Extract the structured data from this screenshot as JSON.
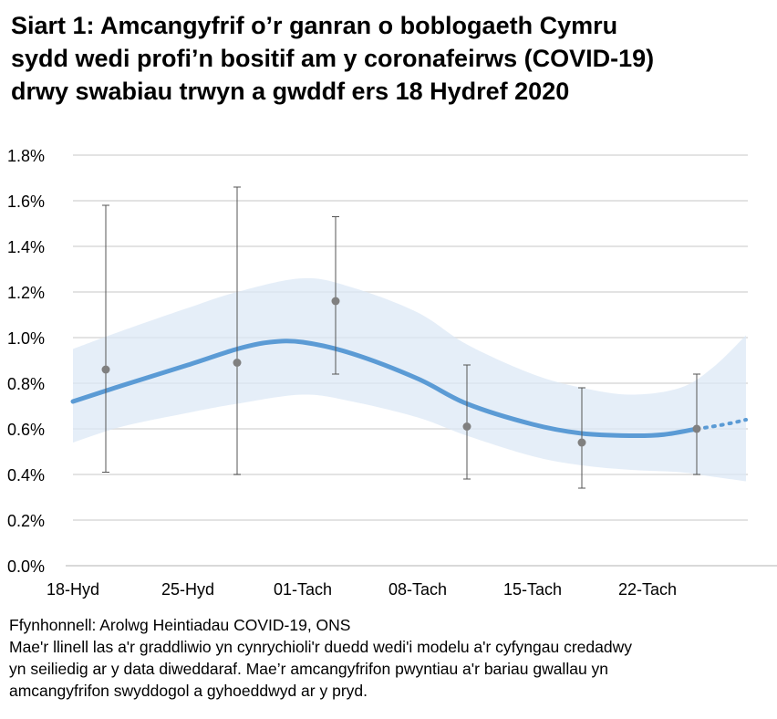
{
  "title_lines": [
    "Siart 1: Amcangyfrif o’r ganran o boblogaeth Cymru",
    "sydd wedi profi’n bositif am y coronafeirws (COVID-19)",
    "drwy swabiau trwyn a gwddf ers 18 Hydref 2020"
  ],
  "notes": {
    "source": "Ffynhonnell: Arolwg Heintiadau COVID-19, ONS",
    "lines": [
      "Mae'r llinell las a'r graddliwio yn cynrychioli'r duedd wedi'i modelu a'r cyfyngau credadwy",
      "yn seiliedig ar y data diweddaraf. Mae’r amcangyfrifon pwyntiau a'r bariau gwallau yn",
      "amcangyfrifon swyddogol a gyhoeddwyd ar y pryd."
    ]
  },
  "chart_data": {
    "type": "line",
    "title": "Siart 1: Amcangyfrif o’r ganran o boblogaeth Cymru sydd wedi profi’n bositif am y coronafeirws (COVID-19) drwy swabiau trwyn a gwddf ers 18 Hydref 2020",
    "xlim": [
      "2020-10-18",
      "2020-11-28"
    ],
    "ylim": [
      0,
      1.8
    ],
    "grid": true,
    "y_ticks": [
      "0.0%",
      "0.2%",
      "0.4%",
      "0.6%",
      "0.8%",
      "1.0%",
      "1.2%",
      "1.4%",
      "1.6%",
      "1.8%"
    ],
    "x_ticks": [
      {
        "date": "2020-10-18",
        "label": "18-Hyd"
      },
      {
        "date": "2020-10-25",
        "label": "25-Hyd"
      },
      {
        "date": "2020-11-01",
        "label": "01-Tach"
      },
      {
        "date": "2020-11-08",
        "label": "08-Tach"
      },
      {
        "date": "2020-11-15",
        "label": "15-Tach"
      },
      {
        "date": "2020-11-22",
        "label": "22-Tach"
      }
    ],
    "model_trend": {
      "color": "#5b9bd5",
      "x": [
        "2020-10-18",
        "2020-10-21",
        "2020-10-25",
        "2020-10-28",
        "2020-10-30",
        "2020-11-01",
        "2020-11-04",
        "2020-11-08",
        "2020-11-11",
        "2020-11-15",
        "2020-11-18",
        "2020-11-21",
        "2020-11-23",
        "2020-11-25"
      ],
      "y": [
        0.72,
        0.79,
        0.88,
        0.95,
        0.98,
        0.98,
        0.93,
        0.82,
        0.71,
        0.62,
        0.58,
        0.57,
        0.575,
        0.6
      ]
    },
    "model_projection": {
      "x": [
        "2020-11-25",
        "2020-11-28"
      ],
      "y": [
        0.6,
        0.64
      ]
    },
    "credible_interval": {
      "color": "#dce8f5",
      "x": [
        "2020-10-18",
        "2020-10-21",
        "2020-10-25",
        "2020-10-28",
        "2020-11-01",
        "2020-11-04",
        "2020-11-08",
        "2020-11-11",
        "2020-11-15",
        "2020-11-18",
        "2020-11-21",
        "2020-11-24",
        "2020-11-26",
        "2020-11-28"
      ],
      "upper": [
        0.95,
        1.03,
        1.13,
        1.2,
        1.26,
        1.22,
        1.11,
        0.97,
        0.84,
        0.78,
        0.75,
        0.78,
        0.87,
        1.01
      ],
      "lower": [
        0.54,
        0.61,
        0.67,
        0.71,
        0.75,
        0.72,
        0.65,
        0.57,
        0.48,
        0.44,
        0.42,
        0.41,
        0.39,
        0.37
      ]
    },
    "official_estimates": {
      "color": "#808080",
      "points": [
        {
          "date": "2020-10-20",
          "value": 0.86,
          "lower": 0.41,
          "upper": 1.58
        },
        {
          "date": "2020-10-28",
          "value": 0.89,
          "lower": 0.4,
          "upper": 1.66
        },
        {
          "date": "2020-11-03",
          "value": 1.16,
          "lower": 0.84,
          "upper": 1.53
        },
        {
          "date": "2020-11-11",
          "value": 0.61,
          "lower": 0.38,
          "upper": 0.88
        },
        {
          "date": "2020-11-18",
          "value": 0.54,
          "lower": 0.34,
          "upper": 0.78
        },
        {
          "date": "2020-11-25",
          "value": 0.6,
          "lower": 0.4,
          "upper": 0.84
        }
      ]
    }
  }
}
